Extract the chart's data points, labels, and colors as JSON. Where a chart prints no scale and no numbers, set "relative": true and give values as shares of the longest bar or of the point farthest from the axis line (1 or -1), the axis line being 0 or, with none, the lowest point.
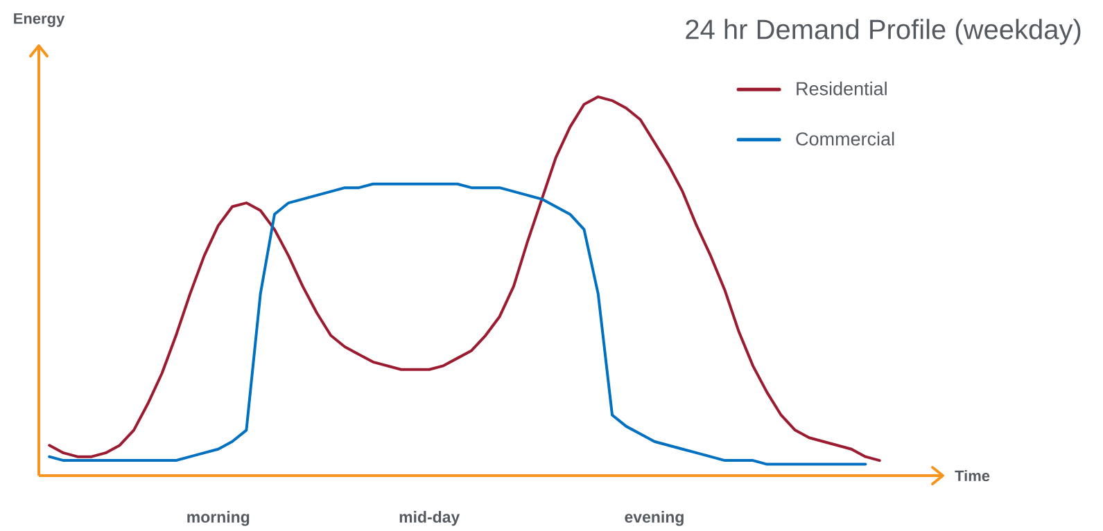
{
  "chart_data": {
    "type": "line",
    "relative": true,
    "title": "24 hr Demand Profile (weekday)",
    "xlabel": "Time",
    "ylabel": "Energy",
    "legend": "top right",
    "marker": "none",
    "line_style": "solid",
    "grid": false,
    "categories": [
      null,
      null,
      null,
      null,
      null,
      null,
      null,
      null,
      null,
      null,
      null,
      null,
      "morning",
      null,
      null,
      null,
      null,
      null,
      null,
      null,
      null,
      null,
      null,
      null,
      null,
      null,
      null,
      "mid-day",
      null,
      null,
      null,
      null,
      null,
      null,
      null,
      null,
      null,
      null,
      null,
      null,
      null,
      null,
      null,
      "evening",
      null,
      null,
      null,
      null,
      null,
      null,
      null,
      null,
      null,
      null,
      null,
      null,
      null,
      null,
      null,
      null
    ],
    "series": [
      {
        "name": "Residential",
        "color": "#9b1b30",
        "values": [
          0.08,
          0.06,
          0.05,
          0.05,
          0.06,
          0.08,
          0.12,
          0.19,
          0.27,
          0.37,
          0.48,
          0.58,
          0.66,
          0.71,
          0.72,
          0.7,
          0.65,
          0.58,
          0.5,
          0.43,
          0.37,
          0.34,
          0.32,
          0.3,
          0.29,
          0.28,
          0.28,
          0.28,
          0.29,
          0.31,
          0.33,
          0.37,
          0.42,
          0.5,
          0.62,
          0.73,
          0.84,
          0.92,
          0.98,
          1,
          0.99,
          0.97,
          0.94,
          0.88,
          0.82,
          0.75,
          0.66,
          0.58,
          0.49,
          0.38,
          0.29,
          0.22,
          0.16,
          0.12,
          0.1,
          0.09,
          0.08,
          0.07,
          0.05,
          0.04
        ]
      },
      {
        "name": "Commercial",
        "color": "#0070c0",
        "values": [
          0.05,
          0.04,
          0.04,
          0.04,
          0.04,
          0.04,
          0.04,
          0.04,
          0.04,
          0.04,
          0.05,
          0.06,
          0.07,
          0.09,
          0.12,
          0.48,
          0.69,
          0.72,
          0.73,
          0.74,
          0.75,
          0.76,
          0.76,
          0.77,
          0.77,
          0.77,
          0.77,
          0.77,
          0.77,
          0.77,
          0.76,
          0.76,
          0.76,
          0.75,
          0.74,
          0.73,
          0.71,
          0.69,
          0.65,
          0.48,
          0.16,
          0.13,
          0.11,
          0.09,
          0.08,
          0.07,
          0.06,
          0.05,
          0.04,
          0.04,
          0.04,
          0.03,
          0.03,
          0.03,
          0.03,
          0.03,
          0.03,
          0.03,
          0.03,
          null
        ]
      }
    ]
  }
}
